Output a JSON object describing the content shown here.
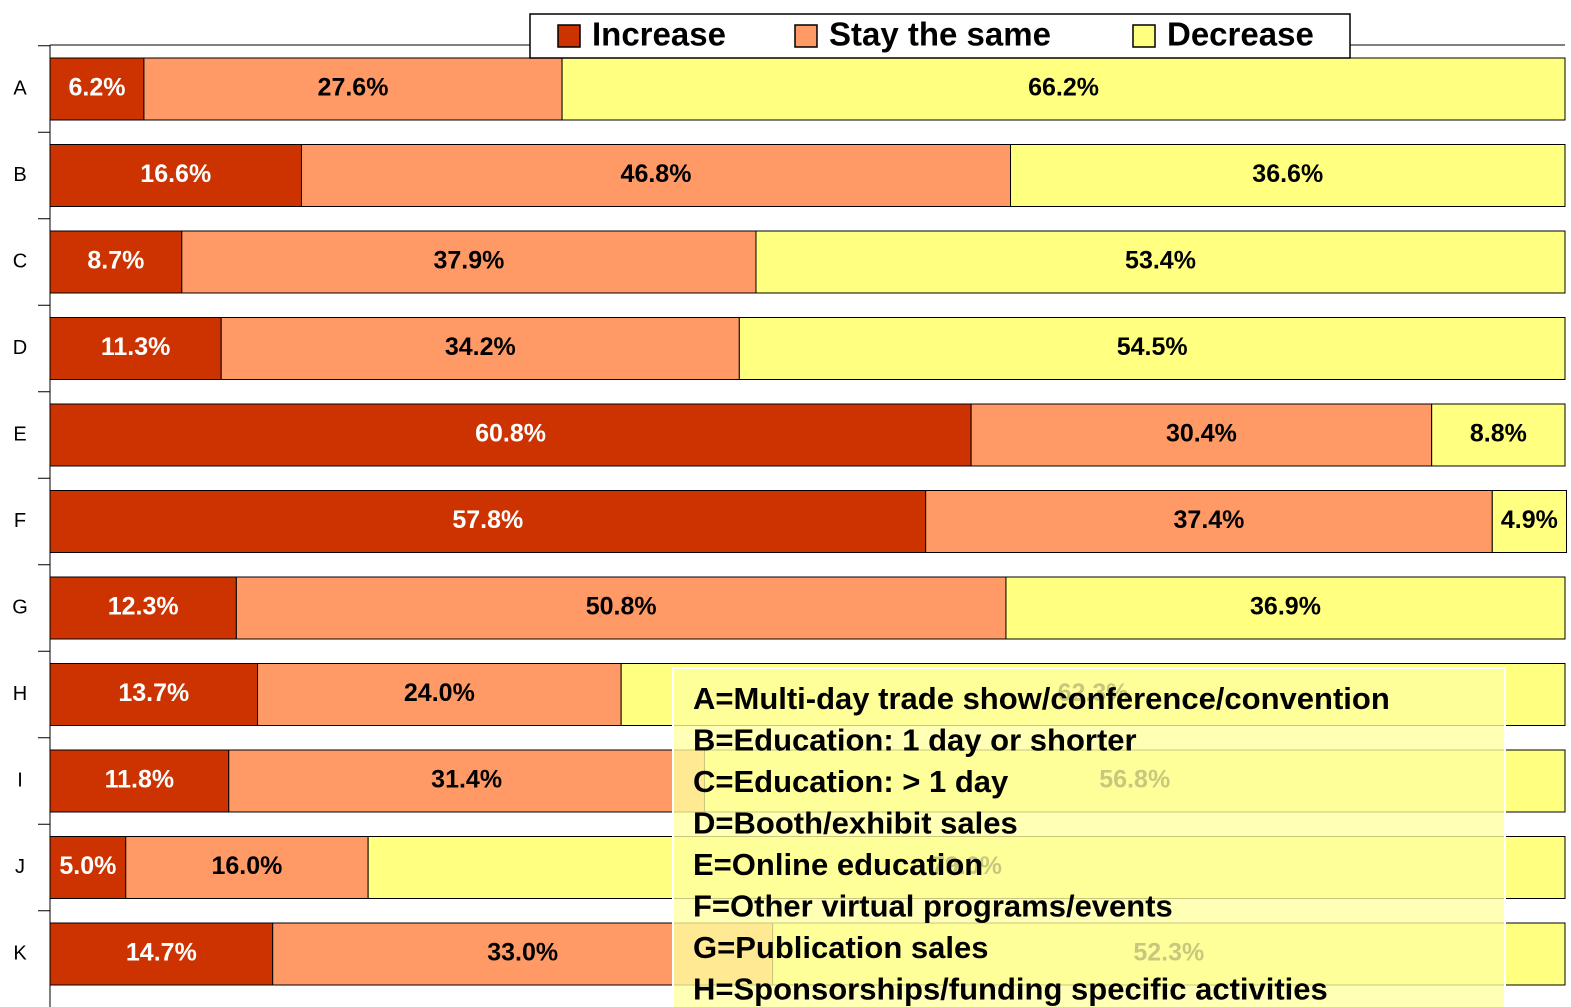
{
  "chart_data": {
    "type": "bar",
    "orientation": "horizontal",
    "stacked": true,
    "categories": [
      "A",
      "B",
      "C",
      "D",
      "E",
      "F",
      "G",
      "H",
      "I",
      "J",
      "K"
    ],
    "xlim": [
      0,
      100
    ],
    "legend": "top",
    "series": [
      {
        "name": "Increase",
        "color": "#cc3300",
        "values": [
          6.2,
          16.6,
          8.7,
          11.3,
          60.8,
          57.8,
          12.3,
          13.7,
          11.8,
          5.0,
          14.7
        ],
        "value_labels": [
          "6.2%",
          "16.6%",
          "8.7%",
          "11.3%",
          "60.8%",
          "57.8%",
          "12.3%",
          "13.7%",
          "11.8%",
          "5.0%",
          "14.7%"
        ]
      },
      {
        "name": "Stay the same",
        "color": "#ff9966",
        "values": [
          27.6,
          46.8,
          37.9,
          34.2,
          30.4,
          37.4,
          50.8,
          24.0,
          31.4,
          16.0,
          33.0
        ],
        "value_labels": [
          "27.6%",
          "46.8%",
          "37.9%",
          "34.2%",
          "30.4%",
          "37.4%",
          "50.8%",
          "24.0%",
          "31.4%",
          "16.0%",
          "33.0%"
        ]
      },
      {
        "name": "Decrease",
        "color": "#ffff80",
        "values": [
          66.2,
          36.6,
          53.4,
          54.5,
          8.8,
          4.9,
          36.9,
          62.3,
          56.8,
          79.0,
          52.3
        ],
        "value_labels": [
          "66.2%",
          "36.6%",
          "53.4%",
          "54.5%",
          "8.8%",
          "4.9%",
          "36.9%",
          "62.3%",
          "56.8%",
          "79.0%",
          "52.3%"
        ]
      }
    ],
    "annotations": [
      "A=Multi-day trade show/conference/convention",
      "B=Education: 1 day or shorter",
      "C=Education: > 1 day",
      "D=Booth/exhibit sales",
      "E=Online education",
      "F=Other virtual programs/events",
      "G=Publication sales",
      "H=Sponsorships/funding specific activities"
    ]
  }
}
